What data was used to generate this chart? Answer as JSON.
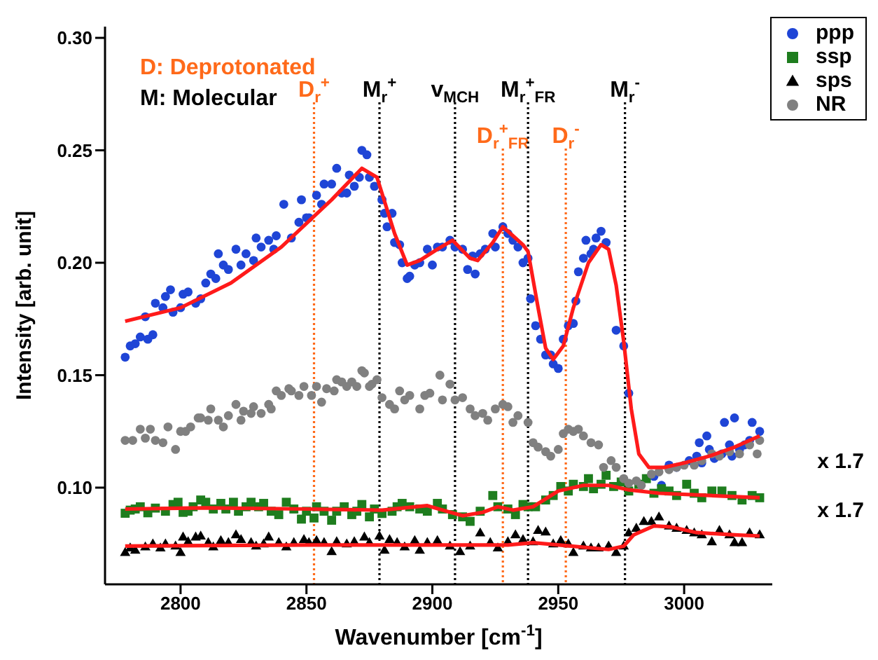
{
  "chart_data": {
    "type": "scatter",
    "xlabel": "Wavenumber [cm$^{-1}$]",
    "ylabel": "Intensity [arb. unit]",
    "xlim": [
      2770,
      3035
    ],
    "xticks": [
      2800,
      2850,
      2900,
      2950,
      3000
    ],
    "ylim": [
      0.057,
      0.305
    ],
    "yticks": [
      {
        "value": 0.1,
        "label": "0.10"
      },
      {
        "value": 0.15,
        "label": "0.15"
      },
      {
        "value": 0.2,
        "label": "0.20"
      },
      {
        "value": 0.25,
        "label": "0.25"
      },
      {
        "value": 0.3,
        "label": "0.30"
      }
    ],
    "grid": false,
    "legend": "top right",
    "annotations": [
      "D: Deprotonated",
      "M: Molecular",
      "x 1.7",
      "x 1.7"
    ],
    "ref_lines": [
      {
        "axis": "x",
        "value": 2853,
        "label": "D$_{r}$$^{+}$",
        "color": "#ff6a1a",
        "line_style": "dotted"
      },
      {
        "axis": "x",
        "value": 2879,
        "label": "M$_{r}$$^{+}$",
        "color": "#000000",
        "line_style": "dotted"
      },
      {
        "axis": "x",
        "value": 2909,
        "label": "v$_{MCH}$",
        "color": "#000000",
        "line_style": "dotted"
      },
      {
        "axis": "x",
        "value": 2928,
        "label": "D$_{r}$$^{+}$$_{FR}$",
        "color": "#ff6a1a",
        "line_style": "dotted"
      },
      {
        "axis": "x",
        "value": 2938,
        "label": "M$_{r}$$^{+}$$_{FR}$",
        "color": "#000000",
        "line_style": "dotted"
      },
      {
        "axis": "x",
        "value": 2953,
        "label": "D$_{r}$$^{-}$",
        "color": "#ff6a1a",
        "line_style": "dotted"
      },
      {
        "axis": "x",
        "value": 2976.5,
        "label": "M$_{r}$$^{-}$",
        "color": "#000000",
        "line_style": "dotted"
      }
    ],
    "series": [
      {
        "name": "ppp",
        "type": "scatter",
        "color": "#1f45d6",
        "marker": "circle",
        "x": [
          2778,
          2780,
          2782,
          2784,
          2787,
          2786,
          2789,
          2790,
          2793,
          2794,
          2796,
          2797,
          2800,
          2801,
          2803,
          2806,
          2808,
          2810,
          2812,
          2814,
          2815,
          2817,
          2819,
          2822,
          2824,
          2826,
          2829,
          2830,
          2832,
          2835,
          2837,
          2838,
          2841,
          2844,
          2847,
          2848,
          2850,
          2851,
          2854,
          2856,
          2857,
          2860,
          2862,
          2864,
          2866,
          2867,
          2869,
          2871,
          2872,
          2874,
          2875,
          2877,
          2880,
          2881,
          2882,
          2884,
          2885,
          2887,
          2888,
          2890,
          2891,
          2893,
          2895,
          2898,
          2900,
          2902,
          2904,
          2907,
          2909,
          2912,
          2914,
          2916,
          2917,
          2919,
          2921,
          2924,
          2925,
          2928,
          2930,
          2932,
          2934,
          2936,
          2938,
          2939,
          2941,
          2943,
          2945,
          2947,
          2948,
          2950,
          2952,
          2954,
          2956,
          2957,
          2958,
          2960,
          2961,
          2963,
          2964,
          2965,
          2967,
          2969,
          2973,
          2976,
          2978,
          2988,
          2991,
          2994,
          2997,
          3002,
          3005,
          3006,
          3007,
          3009,
          3010,
          3012,
          3015,
          3016,
          3018,
          3019,
          3020,
          3022,
          3024,
          3026,
          3027,
          3030
        ],
        "values": [
          0.158,
          0.163,
          0.164,
          0.167,
          0.166,
          0.176,
          0.168,
          0.182,
          0.18,
          0.185,
          0.188,
          0.178,
          0.18,
          0.186,
          0.187,
          0.182,
          0.184,
          0.191,
          0.195,
          0.193,
          0.204,
          0.199,
          0.197,
          0.206,
          0.199,
          0.204,
          0.201,
          0.211,
          0.207,
          0.21,
          0.206,
          0.212,
          0.226,
          0.211,
          0.218,
          0.228,
          0.22,
          0.22,
          0.23,
          0.226,
          0.235,
          0.235,
          0.242,
          0.231,
          0.231,
          0.239,
          0.234,
          0.238,
          0.25,
          0.248,
          0.238,
          0.234,
          0.228,
          0.222,
          0.216,
          0.222,
          0.209,
          0.208,
          0.2,
          0.193,
          0.194,
          0.199,
          0.2,
          0.206,
          0.199,
          0.207,
          0.207,
          0.21,
          0.207,
          0.206,
          0.197,
          0.203,
          0.195,
          0.204,
          0.206,
          0.213,
          0.207,
          0.216,
          0.213,
          0.21,
          0.207,
          0.2,
          0.202,
          0.184,
          0.172,
          0.166,
          0.159,
          0.159,
          0.155,
          0.153,
          0.166,
          0.172,
          0.173,
          0.183,
          0.196,
          0.202,
          0.21,
          0.204,
          0.206,
          0.211,
          0.214,
          0.209,
          0.17,
          0.163,
          0.142,
          0.105,
          0.101,
          0.11,
          0.109,
          0.112,
          0.114,
          0.12,
          0.111,
          0.123,
          0.117,
          0.113,
          0.115,
          0.129,
          0.119,
          0.114,
          0.131,
          0.117,
          0.119,
          0.121,
          0.129,
          0.125
        ]
      },
      {
        "name": "ssp",
        "type": "scatter",
        "color": "#1e7d1e",
        "marker": "square",
        "x": [
          2778,
          2780,
          2782,
          2784,
          2787,
          2790,
          2794,
          2797,
          2799,
          2801,
          2803,
          2805,
          2808,
          2810,
          2813,
          2816,
          2818,
          2821,
          2823,
          2826,
          2828,
          2831,
          2833,
          2836,
          2839,
          2842,
          2845,
          2848,
          2850,
          2853,
          2854,
          2857,
          2860,
          2862,
          2865,
          2868,
          2870,
          2872,
          2875,
          2877,
          2880,
          2884,
          2886,
          2888,
          2891,
          2895,
          2898,
          2902,
          2904,
          2908,
          2912,
          2915,
          2919,
          2924,
          2926,
          2930,
          2933,
          2936,
          2938,
          2941,
          2945,
          2948,
          2951,
          2954,
          2956,
          2960,
          2962,
          2964,
          2967,
          2969,
          2972,
          2975,
          2978,
          2982,
          2985,
          2988,
          2991,
          2994,
          2997,
          3001,
          3004,
          3007,
          3011,
          3015,
          3019,
          3023,
          3027,
          3030
        ],
        "values": [
          0.0886,
          0.09,
          0.0905,
          0.0915,
          0.0888,
          0.0909,
          0.0895,
          0.0925,
          0.0935,
          0.089,
          0.0895,
          0.0915,
          0.0945,
          0.0935,
          0.0905,
          0.093,
          0.0905,
          0.0935,
          0.0895,
          0.0915,
          0.0935,
          0.0915,
          0.093,
          0.0895,
          0.088,
          0.0935,
          0.0905,
          0.086,
          0.0895,
          0.0865,
          0.0915,
          0.0895,
          0.0855,
          0.0895,
          0.0915,
          0.088,
          0.0895,
          0.0925,
          0.087,
          0.0905,
          0.0885,
          0.0895,
          0.0915,
          0.093,
          0.0915,
          0.0905,
          0.0895,
          0.093,
          0.0905,
          0.088,
          0.087,
          0.085,
          0.0895,
          0.0965,
          0.0915,
          0.0905,
          0.088,
          0.0925,
          0.0915,
          0.0915,
          0.0945,
          0.0965,
          0.1005,
          0.0985,
          0.1015,
          0.1005,
          0.104,
          0.0995,
          0.1015,
          0.1055,
          0.1005,
          0.1025,
          0.0985,
          0.1015,
          0.104,
          0.0975,
          0.0995,
          0.0985,
          0.0965,
          0.1015,
          0.0975,
          0.0955,
          0.0985,
          0.0985,
          0.0965,
          0.0945,
          0.0965,
          0.0955
        ]
      },
      {
        "name": "sps",
        "type": "scatter",
        "color": "#000000",
        "marker": "triangle",
        "x": [
          2778,
          2780,
          2782,
          2786,
          2789,
          2792,
          2794,
          2798,
          2800,
          2801,
          2803,
          2806,
          2808,
          2811,
          2813,
          2816,
          2819,
          2822,
          2824,
          2828,
          2830,
          2833,
          2835,
          2839,
          2842,
          2845,
          2849,
          2851,
          2854,
          2857,
          2860,
          2862,
          2866,
          2869,
          2873,
          2875,
          2879,
          2881,
          2883,
          2886,
          2889,
          2893,
          2895,
          2898,
          2902,
          2907,
          2911,
          2915,
          2919,
          2923,
          2926,
          2930,
          2933,
          2936,
          2940,
          2942,
          2945,
          2948,
          2951,
          2954,
          2956,
          2960,
          2963,
          2966,
          2970,
          2973,
          2976,
          2978,
          2981,
          2984,
          2987,
          2990,
          2994,
          2997,
          3001,
          3004,
          3007,
          3011,
          3014,
          3018,
          3020,
          3023,
          3026,
          3030
        ],
        "values": [
          0.0712,
          0.0732,
          0.0722,
          0.0737,
          0.075,
          0.0732,
          0.075,
          0.0741,
          0.0712,
          0.0781,
          0.076,
          0.0781,
          0.0785,
          0.0756,
          0.0737,
          0.0765,
          0.0756,
          0.0791,
          0.077,
          0.0756,
          0.0741,
          0.075,
          0.0781,
          0.0756,
          0.0737,
          0.0756,
          0.077,
          0.0756,
          0.0765,
          0.0756,
          0.0716,
          0.076,
          0.075,
          0.076,
          0.0781,
          0.0756,
          0.0785,
          0.0722,
          0.077,
          0.0756,
          0.0737,
          0.0765,
          0.0722,
          0.0756,
          0.0765,
          0.0741,
          0.0716,
          0.0741,
          0.0799,
          0.0756,
          0.0732,
          0.076,
          0.0791,
          0.077,
          0.076,
          0.081,
          0.0803,
          0.075,
          0.0765,
          0.075,
          0.0712,
          0.0741,
          0.0732,
          0.0732,
          0.0741,
          0.0712,
          0.0741,
          0.0799,
          0.082,
          0.085,
          0.085,
          0.087,
          0.083,
          0.082,
          0.081,
          0.0799,
          0.0791,
          0.076,
          0.081,
          0.0791,
          0.0756,
          0.0756,
          0.0799,
          0.0791
        ]
      },
      {
        "name": "NR",
        "type": "scatter",
        "color": "#808080",
        "marker": "circle",
        "x": [
          2778,
          2781,
          2784,
          2786,
          2788,
          2790,
          2793,
          2795,
          2798,
          2800,
          2802,
          2804,
          2807,
          2808,
          2811,
          2812,
          2815,
          2817,
          2819,
          2822,
          2824,
          2825,
          2828,
          2829,
          2832,
          2835,
          2836,
          2838,
          2840,
          2843,
          2844,
          2847,
          2849,
          2852,
          2854,
          2856,
          2858,
          2861,
          2862,
          2864,
          2866,
          2868,
          2870,
          2872,
          2873,
          2875,
          2876,
          2878,
          2880,
          2883,
          2885,
          2887,
          2889,
          2891,
          2895,
          2897,
          2899,
          2903,
          2904,
          2907,
          2909,
          2912,
          2915,
          2917,
          2920,
          2922,
          2925,
          2928,
          2930,
          2932,
          2934,
          2938,
          2940,
          2942,
          2945,
          2947,
          2950,
          2952,
          2954,
          2956,
          2958,
          2960,
          2963,
          2966,
          2968,
          2971,
          2973,
          2976,
          2978,
          2981,
          2983,
          2987,
          2990,
          2994,
          2997,
          3000,
          3004,
          3007,
          3011,
          3014,
          3018,
          3022,
          3026,
          3029,
          3030
        ],
        "values": [
          0.121,
          0.121,
          0.126,
          0.122,
          0.126,
          0.121,
          0.12,
          0.127,
          0.117,
          0.125,
          0.125,
          0.127,
          0.131,
          0.131,
          0.13,
          0.135,
          0.13,
          0.127,
          0.132,
          0.137,
          0.13,
          0.134,
          0.133,
          0.136,
          0.133,
          0.137,
          0.135,
          0.143,
          0.141,
          0.144,
          0.143,
          0.141,
          0.145,
          0.141,
          0.145,
          0.138,
          0.144,
          0.143,
          0.148,
          0.147,
          0.145,
          0.147,
          0.145,
          0.152,
          0.151,
          0.145,
          0.146,
          0.148,
          0.14,
          0.137,
          0.135,
          0.143,
          0.139,
          0.141,
          0.135,
          0.141,
          0.142,
          0.15,
          0.139,
          0.146,
          0.139,
          0.14,
          0.135,
          0.132,
          0.133,
          0.13,
          0.135,
          0.137,
          0.136,
          0.129,
          0.132,
          0.129,
          0.12,
          0.118,
          0.116,
          0.114,
          0.117,
          0.124,
          0.126,
          0.125,
          0.126,
          0.123,
          0.12,
          0.119,
          0.109,
          0.112,
          0.109,
          0.104,
          0.102,
          0.103,
          0.101,
          0.106,
          0.107,
          0.108,
          0.109,
          0.11,
          0.11,
          0.112,
          0.115,
          0.114,
          0.116,
          0.115,
          0.119,
          0.115,
          0.121
        ]
      },
      {
        "type": "line",
        "color": "#ff1a1a",
        "marker": "none",
        "x": [
          2778,
          2800,
          2820,
          2840,
          2860,
          2872,
          2878,
          2885,
          2890,
          2895,
          2902,
          2908,
          2915,
          2918,
          2924,
          2928,
          2932,
          2936,
          2938,
          2942,
          2945,
          2948,
          2952,
          2956,
          2962,
          2967,
          2970,
          2973,
          2976,
          2979,
          2982,
          2986,
          2992,
          3000,
          3010,
          3020,
          3030
        ],
        "values": [
          0.174,
          0.18,
          0.191,
          0.207,
          0.228,
          0.242,
          0.238,
          0.213,
          0.199,
          0.201,
          0.206,
          0.21,
          0.202,
          0.201,
          0.209,
          0.216,
          0.212,
          0.208,
          0.205,
          0.18,
          0.162,
          0.157,
          0.163,
          0.18,
          0.2,
          0.208,
          0.206,
          0.19,
          0.165,
          0.135,
          0.115,
          0.109,
          0.109,
          0.111,
          0.114,
          0.118,
          0.123
        ]
      },
      {
        "type": "line",
        "color": "#ff1a1a",
        "marker": "none",
        "x": [
          2778,
          2810,
          2850,
          2880,
          2898,
          2904,
          2912,
          2920,
          2926,
          2932,
          2940,
          2950,
          2960,
          2970,
          2978,
          2990,
          3010,
          3030
        ],
        "values": [
          0.0905,
          0.091,
          0.0905,
          0.09,
          0.092,
          0.09,
          0.0875,
          0.089,
          0.0915,
          0.09,
          0.0915,
          0.0985,
          0.101,
          0.101,
          0.099,
          0.0975,
          0.0965,
          0.0955
        ]
      },
      {
        "type": "line",
        "color": "#ff1a1a",
        "marker": "none",
        "x": [
          2778,
          2850,
          2900,
          2930,
          2940,
          2955,
          2970,
          2976,
          2980,
          2988,
          2995,
          3005,
          3020,
          3030
        ],
        "values": [
          0.074,
          0.0745,
          0.0745,
          0.0745,
          0.0755,
          0.074,
          0.0725,
          0.074,
          0.079,
          0.083,
          0.0825,
          0.08,
          0.079,
          0.0785
        ]
      }
    ]
  }
}
